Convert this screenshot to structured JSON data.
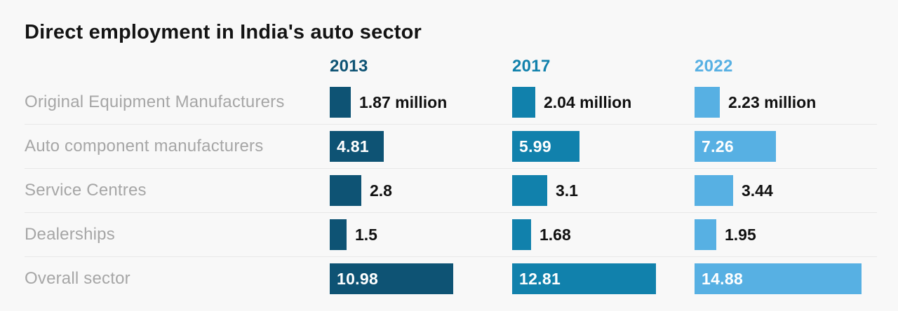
{
  "title": "Direct employment in India's auto sector",
  "unit_label": "million",
  "columns": [
    {
      "year": "2013",
      "color": "#0e5374"
    },
    {
      "year": "2017",
      "color": "#1181ac"
    },
    {
      "year": "2022",
      "color": "#57b0e3"
    }
  ],
  "rows": [
    {
      "label": "Original Equipment Manufacturers",
      "cells": [
        {
          "value": 1.87,
          "text": "1.87 million",
          "inside": false
        },
        {
          "value": 2.04,
          "text": "2.04 million",
          "inside": false
        },
        {
          "value": 2.23,
          "text": "2.23 million",
          "inside": false
        }
      ]
    },
    {
      "label": "Auto component manufacturers",
      "cells": [
        {
          "value": 4.81,
          "text": "4.81",
          "inside": true
        },
        {
          "value": 5.99,
          "text": "5.99",
          "inside": true
        },
        {
          "value": 7.26,
          "text": "7.26",
          "inside": true
        }
      ]
    },
    {
      "label": "Service Centres",
      "cells": [
        {
          "value": 2.8,
          "text": "2.8",
          "inside": false
        },
        {
          "value": 3.1,
          "text": "3.1",
          "inside": false
        },
        {
          "value": 3.44,
          "text": "3.44",
          "inside": false
        }
      ]
    },
    {
      "label": "Dealerships",
      "cells": [
        {
          "value": 1.5,
          "text": "1.5",
          "inside": false
        },
        {
          "value": 1.68,
          "text": "1.68",
          "inside": false
        },
        {
          "value": 1.95,
          "text": "1.95",
          "inside": false
        }
      ]
    },
    {
      "label": "Overall sector",
      "cells": [
        {
          "value": 10.98,
          "text": "10.98",
          "inside": true
        },
        {
          "value": 12.81,
          "text": "12.81",
          "inside": true
        },
        {
          "value": 14.88,
          "text": "14.88",
          "inside": true
        }
      ]
    }
  ],
  "colors": {
    "background": "#f8f8f8",
    "title_text": "#141414",
    "label_text": "#a6a6a6",
    "value_text": "#111111",
    "bar_inside_text": "#ffffff",
    "divider": "#e8e8e8"
  },
  "chart_data": {
    "type": "bar",
    "orientation": "horizontal",
    "title": "Direct employment in India's auto sector",
    "value_unit": "million",
    "categories": [
      "Original Equipment Manufacturers",
      "Auto component manufacturers",
      "Service Centres",
      "Dealerships",
      "Overall sector"
    ],
    "series": [
      {
        "name": "2013",
        "color": "#0e5374",
        "values": [
          1.87,
          4.81,
          2.8,
          1.5,
          10.98
        ]
      },
      {
        "name": "2017",
        "color": "#1181ac",
        "values": [
          2.04,
          5.99,
          3.1,
          1.68,
          12.81
        ]
      },
      {
        "name": "2022",
        "color": "#57b0e3",
        "values": [
          2.23,
          7.26,
          3.44,
          1.95,
          14.88
        ]
      }
    ],
    "xlim": [
      0,
      16.25
    ],
    "grid": false,
    "legend_position": "column headers above each bar group",
    "value_labels": "shown for every bar; inside bar when bar is wide, right of bar when narrow"
  }
}
